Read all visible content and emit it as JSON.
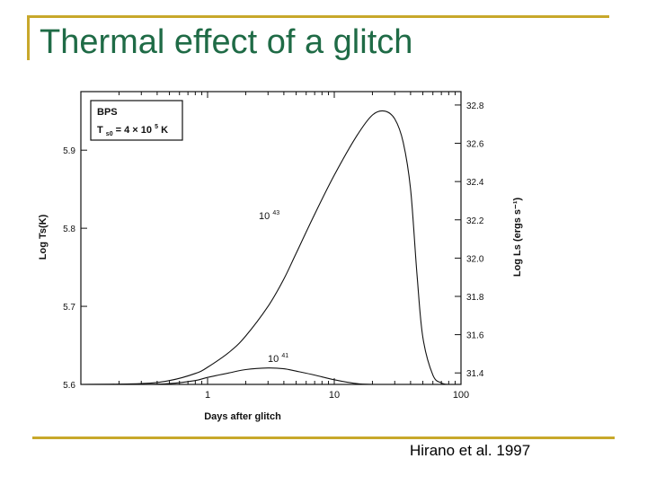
{
  "slide": {
    "title": "Thermal effect of a glitch",
    "citation": "Hirano et al. 1997"
  },
  "colors": {
    "title": "#1f6b46",
    "decoration": "#c8a82b",
    "plot": "#111111"
  },
  "chart_data": {
    "type": "line",
    "title": "",
    "xlabel": "Days after glitch",
    "ylabel_left": "Log Ts(K)",
    "ylabel_right": "Log Ls (ergs s⁻¹)",
    "x_scale": "log",
    "xlim": [
      0.1,
      100
    ],
    "x_ticks": [
      {
        "value": 1,
        "label": "1"
      },
      {
        "value": 10,
        "label": "10"
      },
      {
        "value": 100,
        "label": "100"
      }
    ],
    "ylim_left": [
      5.6,
      5.975
    ],
    "y_ticks_left": [
      {
        "value": 5.6,
        "label": "5.6"
      },
      {
        "value": 5.7,
        "label": "5.7"
      },
      {
        "value": 5.8,
        "label": "5.8"
      },
      {
        "value": 5.9,
        "label": "5.9"
      }
    ],
    "ylim_right": [
      31.34,
      32.87
    ],
    "y_ticks_right": [
      {
        "value": 31.4,
        "label": "31.4"
      },
      {
        "value": 31.6,
        "label": "31.6"
      },
      {
        "value": 31.8,
        "label": "31.8"
      },
      {
        "value": 32.0,
        "label": "32.0"
      },
      {
        "value": 32.2,
        "label": "32.2"
      },
      {
        "value": 32.4,
        "label": "32.4"
      },
      {
        "value": 32.6,
        "label": "32.6"
      },
      {
        "value": 32.8,
        "label": "32.8"
      }
    ],
    "legend_box": {
      "line1": "BPS",
      "line2_main": "T",
      "line2_sub": "s0",
      "line2_rest": " = 4 × 10",
      "line2_sup": "5",
      "line2_end": " K"
    },
    "series": [
      {
        "name": "10^43",
        "label_base": "10",
        "label_exp": "43",
        "x": [
          0.1,
          0.3,
          0.5,
          0.8,
          1.0,
          1.5,
          2,
          3,
          4,
          5,
          7,
          10,
          15,
          20,
          25,
          30,
          35,
          40,
          45,
          50,
          60,
          70,
          80,
          100
        ],
        "y": [
          5.6,
          5.601,
          5.605,
          5.614,
          5.622,
          5.642,
          5.662,
          5.7,
          5.735,
          5.768,
          5.818,
          5.868,
          5.918,
          5.945,
          5.95,
          5.94,
          5.91,
          5.85,
          5.74,
          5.66,
          5.612,
          5.602,
          5.6,
          5.6
        ]
      },
      {
        "name": "10^41",
        "label_base": "10",
        "label_exp": "41",
        "x": [
          0.1,
          0.3,
          0.5,
          0.8,
          1.0,
          1.5,
          2,
          3,
          4,
          5,
          7,
          10,
          15,
          20,
          30,
          50,
          100
        ],
        "y": [
          5.6,
          5.6,
          5.601,
          5.605,
          5.609,
          5.615,
          5.619,
          5.621,
          5.62,
          5.617,
          5.612,
          5.606,
          5.601,
          5.6,
          5.6,
          5.6,
          5.6
        ]
      }
    ]
  }
}
